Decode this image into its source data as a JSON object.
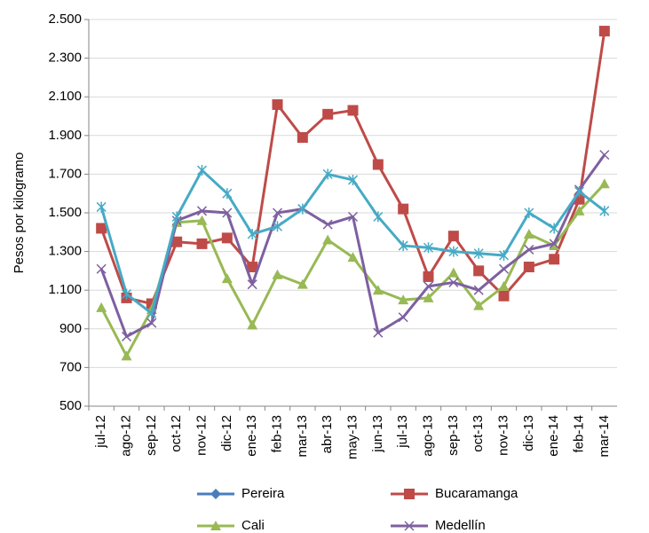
{
  "chart_data": {
    "type": "line",
    "y_label": "Pesos por kilogramo",
    "categories": [
      "jul-12",
      "ago-12",
      "sep-12",
      "oct-12",
      "nov-12",
      "dic-12",
      "ene-13",
      "feb-13",
      "mar-13",
      "abr-13",
      "may-13",
      "jun-13",
      "jul-13",
      "ago-13",
      "sep-13",
      "oct-13",
      "nov-13",
      "dic-13",
      "ene-14",
      "feb-14",
      "mar-14"
    ],
    "ylim": [
      500,
      2500
    ],
    "yticks": [
      500,
      700,
      900,
      {
        "value": 1100,
        "label": "1.100"
      },
      {
        "value": 1300,
        "label": "1.300"
      },
      {
        "value": 1500,
        "label": "1.500"
      },
      {
        "value": 1700,
        "label": "1.700"
      },
      {
        "value": 1900,
        "label": "1.900"
      },
      {
        "value": 2100,
        "label": "2.100"
      },
      {
        "value": 2300,
        "label": "2.300"
      },
      {
        "value": 2500,
        "label": "2.500"
      }
    ],
    "grid": true,
    "legend": "bottom",
    "series": [
      {
        "name": "Pereira",
        "color": "#4a7ebb",
        "marker": "diamond",
        "values": [
          null,
          null,
          null,
          null,
          null,
          null,
          null,
          null,
          null,
          null,
          null,
          null,
          null,
          null,
          null,
          null,
          null,
          null,
          null,
          null,
          null
        ]
      },
      {
        "name": "Bucaramanga",
        "color": "#be4b48",
        "marker": "square",
        "values": [
          1420,
          1060,
          1030,
          1350,
          1340,
          1370,
          1220,
          2060,
          1890,
          2010,
          2030,
          1750,
          1520,
          1170,
          1380,
          1200,
          1070,
          1220,
          1260,
          1570,
          2440
        ]
      },
      {
        "name": "Cali",
        "color": "#98b954",
        "marker": "triangle",
        "values": [
          1010,
          760,
          1000,
          1450,
          1460,
          1160,
          920,
          1180,
          1130,
          1360,
          1270,
          1100,
          1050,
          1060,
          1190,
          1020,
          1120,
          1390,
          1330,
          1510,
          1650
        ]
      },
      {
        "name": "Medellín",
        "color": "#7d60a0",
        "marker": "x",
        "values": [
          1210,
          860,
          930,
          1460,
          1510,
          1500,
          1130,
          1500,
          1520,
          1440,
          1480,
          880,
          960,
          1120,
          1140,
          1100,
          1210,
          1310,
          1340,
          1620,
          1800
        ]
      },
      {
        "color": "#46aac5",
        "marker": "star",
        "values": [
          1530,
          1080,
          980,
          1480,
          1720,
          1600,
          1390,
          1430,
          1520,
          1700,
          1670,
          1480,
          1330,
          1320,
          1300,
          1290,
          1280,
          1500,
          1420,
          1610,
          1510
        ]
      }
    ]
  }
}
